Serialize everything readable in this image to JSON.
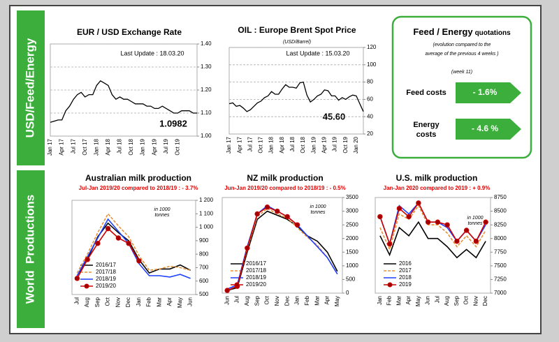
{
  "sections": [
    "USD/Feed/Energy",
    "World  Productions"
  ],
  "feed_energy": {
    "title_bold": "Feed / Energy",
    "title_rest": "quotations",
    "note_line1": "(evolution compared to the",
    "note_line2": "average of the previous 4 weeks )",
    "week": "(week 11)",
    "rows": [
      {
        "label": [
          "Feed costs"
        ],
        "value": "- 1.6%"
      },
      {
        "label": [
          "Energy",
          "costs"
        ],
        "value": "- 4.6 %"
      }
    ]
  },
  "chart_data": [
    {
      "type": "line",
      "title": "EUR / USD Exchange Rate",
      "annotations": [
        "Last Update : 18.03.20",
        "1.0982"
      ],
      "categories": [
        "Jan 17",
        null,
        null,
        "Apr 17",
        null,
        null,
        "Jul 17",
        null,
        null,
        "Oct 17",
        null,
        null,
        "Jan 18",
        null,
        null,
        "Apr 18",
        null,
        null,
        "Jul 18",
        null,
        null,
        "Oct 18",
        null,
        null,
        "Jan 19",
        null,
        null,
        "Apr 19",
        null,
        null,
        "Jul 19",
        null,
        null,
        "Oct 19",
        null,
        null,
        null,
        null,
        null
      ],
      "series": [
        {
          "name": "EUR/USD",
          "color": "#000000",
          "values": [
            1.06,
            1.065,
            1.07,
            1.07,
            1.11,
            1.13,
            1.16,
            1.18,
            1.19,
            1.17,
            1.18,
            1.18,
            1.22,
            1.24,
            1.23,
            1.22,
            1.18,
            1.16,
            1.17,
            1.16,
            1.16,
            1.15,
            1.14,
            1.14,
            1.14,
            1.13,
            1.13,
            1.12,
            1.12,
            1.13,
            1.12,
            1.11,
            1.1,
            1.1,
            1.11,
            1.11,
            1.11,
            1.1,
            1.1
          ]
        }
      ],
      "ylim": [
        1.0,
        1.4
      ],
      "yticks": [
        {
          "value": 1.0,
          "label": "1.00"
        },
        {
          "value": 1.1,
          "label": "1.10"
        },
        {
          "value": 1.2,
          "label": "1.20"
        },
        {
          "value": 1.3,
          "label": "1.30"
        },
        {
          "value": 1.4,
          "label": "1.40"
        }
      ],
      "grid": true
    },
    {
      "type": "line",
      "title": "OIL : Europe Brent Spot Price",
      "subtitle": "(USD/Barrel)",
      "annotations": [
        "Last Update : 15.03.20",
        "45.60"
      ],
      "categories": [
        "Jan 17",
        null,
        null,
        "Apr 17",
        null,
        null,
        "Jul 17",
        null,
        null,
        "Oct 17",
        null,
        null,
        "Jan 18",
        null,
        null,
        "Apr 18",
        null,
        null,
        "Jul 18",
        null,
        null,
        "Oct 18",
        null,
        null,
        "Jan 19",
        null,
        null,
        "Apr 19",
        null,
        null,
        "Jul 19",
        null,
        null,
        "Oct 19",
        null,
        null,
        "Jan 20",
        null,
        null
      ],
      "series": [
        {
          "name": "Brent",
          "color": "#000000",
          "values": [
            55,
            56,
            52,
            53,
            50,
            46,
            48,
            52,
            56,
            58,
            62,
            64,
            69,
            66,
            66,
            72,
            77,
            74,
            74,
            73,
            79,
            80,
            65,
            57,
            60,
            64,
            66,
            71,
            70,
            64,
            64,
            59,
            62,
            60,
            63,
            65,
            64,
            55,
            46
          ]
        }
      ],
      "ylim": [
        20,
        120
      ],
      "yticks": [
        20,
        40,
        60,
        80,
        100,
        120
      ],
      "grid": true
    },
    {
      "type": "line",
      "title": "Australian milk production",
      "subtitle": "Jul-Jan 2019/20 compared to 2018/19 : - 3.7%",
      "unit_note": [
        "in 1000",
        "tonnes"
      ],
      "categories": [
        "Jul",
        "Aug",
        "Sep",
        "Oct",
        "Nov",
        "Dec",
        "Jan",
        "Feb",
        "Mar",
        "Apr",
        "May",
        "Jun"
      ],
      "series": [
        {
          "name": "2016/17",
          "color": "#000000",
          "values": [
            640,
            760,
            930,
            1030,
            960,
            900,
            760,
            660,
            690,
            690,
            720,
            680
          ]
        },
        {
          "name": "2017/18",
          "color": "#e69138",
          "dashed": true,
          "values": [
            660,
            800,
            960,
            1100,
            1010,
            930,
            790,
            680,
            690,
            710,
            700,
            680
          ]
        },
        {
          "name": "2018/19",
          "color": "#1f3fff",
          "values": [
            640,
            780,
            920,
            1060,
            970,
            880,
            730,
            640,
            640,
            630,
            650,
            620
          ]
        },
        {
          "name": "2019/20",
          "color": "#cc0000",
          "marker": true,
          "values": [
            620,
            760,
            880,
            990,
            920,
            880,
            750,
            null,
            null,
            null,
            null,
            null
          ]
        }
      ],
      "ylim": [
        500,
        1200
      ],
      "yticks": [
        500,
        600,
        700,
        800,
        900,
        {
          "value": 1000,
          "label": "1 000"
        },
        {
          "value": 1100,
          "label": "1 100"
        },
        {
          "value": 1200,
          "label": "1 200"
        }
      ],
      "grid": false,
      "legend": "lower left"
    },
    {
      "type": "line",
      "title": "NZ milk production",
      "subtitle": "Jun-Jan 2019/20 compared to 2018/19 : - 0.5%",
      "unit_note": [
        "in 1000",
        "tonnes"
      ],
      "categories": [
        "Jun",
        "Jul",
        "Aug",
        "Sep",
        "Oct",
        "Nov",
        "Dec",
        "Jan",
        "Feb",
        "Mar",
        "Apr",
        "May"
      ],
      "series": [
        {
          "name": "2016/17",
          "color": "#000000",
          "values": [
            100,
            200,
            1500,
            2700,
            3000,
            2850,
            2700,
            2450,
            2100,
            1900,
            1500,
            800
          ]
        },
        {
          "name": "2017/18",
          "color": "#e69138",
          "dashed": true,
          "values": [
            100,
            250,
            1600,
            2800,
            3100,
            2900,
            2750,
            2400,
            2050,
            1750,
            1300,
            700
          ]
        },
        {
          "name": "2018/19",
          "color": "#1f3fff",
          "values": [
            150,
            300,
            1700,
            2900,
            3200,
            3000,
            2800,
            2500,
            2100,
            1700,
            1300,
            700
          ]
        },
        {
          "name": "2019/20",
          "color": "#cc0000",
          "marker": true,
          "values": [
            100,
            250,
            1650,
            2900,
            3150,
            3000,
            2800,
            2500,
            null,
            null,
            null,
            null
          ]
        }
      ],
      "ylim": [
        0,
        3500
      ],
      "yticks": [
        0,
        500,
        1000,
        1500,
        2000,
        2500,
        3000,
        3500
      ],
      "grid": false,
      "legend": "lower left"
    },
    {
      "type": "line",
      "title": "U.S. milk production",
      "subtitle": "Jan-Jan 2020 compared to 2019 : + 0.9%",
      "unit_note": [
        "in 1000",
        "tonnes"
      ],
      "categories": [
        "Jan",
        "Feb",
        "Mar",
        "Apr",
        "May",
        "Jun",
        "Jul",
        "Aug",
        "Sep",
        "Oct",
        "Nov",
        "Dec"
      ],
      "series": [
        {
          "name": "2016",
          "color": "#000000",
          "values": [
            8050,
            7700,
            8200,
            8050,
            8300,
            8000,
            8000,
            7850,
            7650,
            7800,
            7650,
            7950
          ]
        },
        {
          "name": "2017",
          "color": "#e69138",
          "dashed": true,
          "values": [
            8200,
            7800,
            8450,
            8350,
            8600,
            8250,
            8250,
            8100,
            7850,
            8050,
            7850,
            8150
          ]
        },
        {
          "name": "2018",
          "color": "#1f3fff",
          "values": [
            8400,
            7900,
            8600,
            8450,
            8650,
            8300,
            8300,
            8200,
            7950,
            8150,
            7950,
            8250
          ]
        },
        {
          "name": "2019",
          "color": "#cc0000",
          "marker": true,
          "values": [
            8400,
            7900,
            8550,
            8400,
            8650,
            8300,
            8300,
            8250,
            7950,
            8150,
            7950,
            8300
          ]
        }
      ],
      "ylim": [
        7000,
        8750
      ],
      "yticks": [
        7000,
        7250,
        7500,
        7750,
        8000,
        8250,
        8500,
        8750
      ],
      "grid": false,
      "legend": "lower left"
    }
  ]
}
